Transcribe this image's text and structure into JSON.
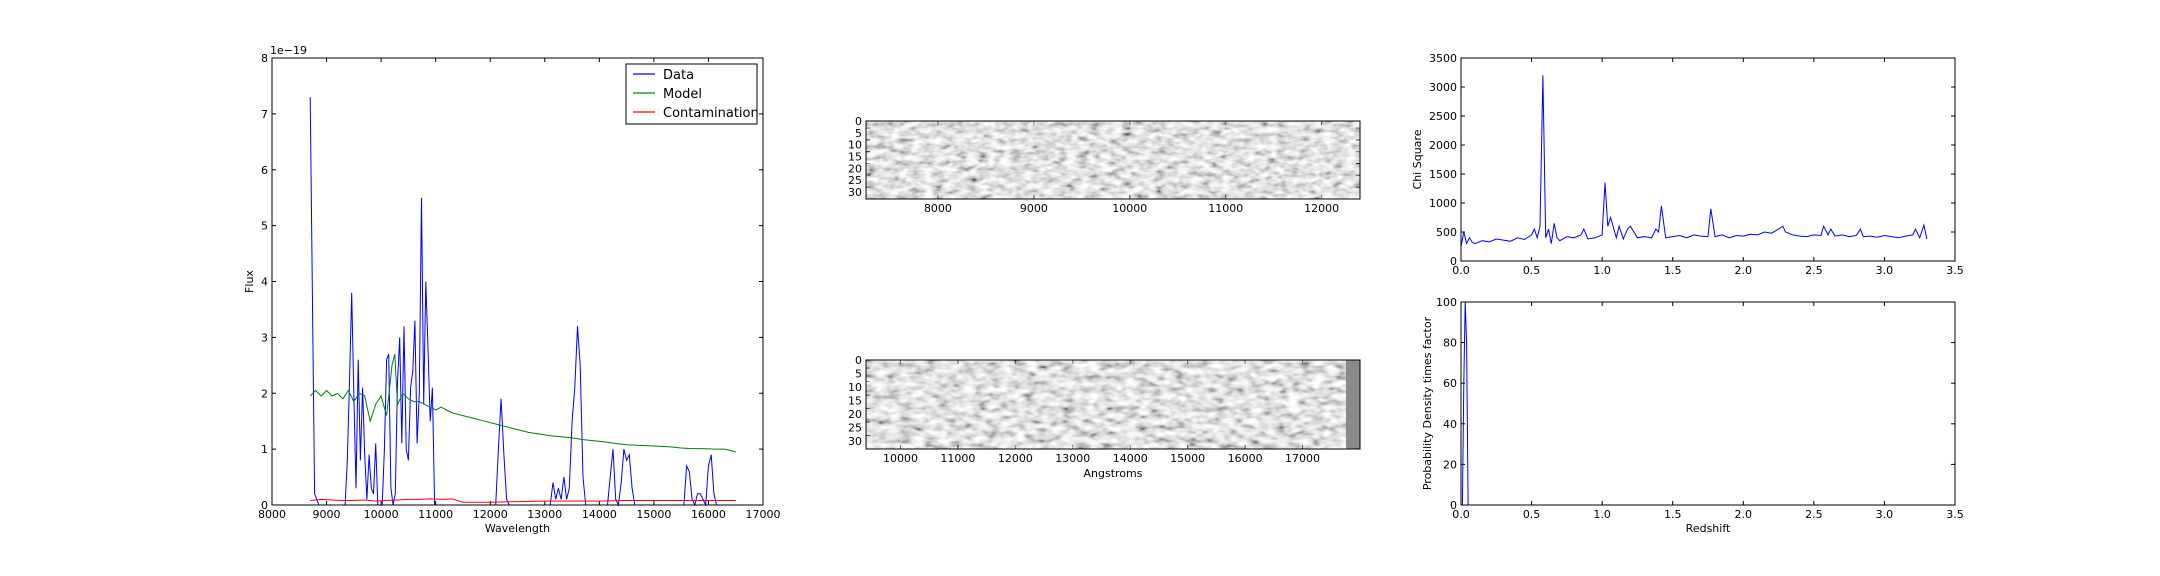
{
  "charts": {
    "spectrum": {
      "type": "line",
      "xlabel": "Wavelength",
      "ylabel": "Flux",
      "offset_text": "1e−19",
      "xlim": [
        8000,
        17000
      ],
      "ylim": [
        0,
        8
      ],
      "xticks": [
        8000,
        9000,
        10000,
        11000,
        12000,
        13000,
        14000,
        15000,
        16000,
        17000
      ],
      "yticks": [
        0,
        1,
        2,
        3,
        4,
        5,
        6,
        7,
        8
      ],
      "legend": {
        "placement": "upper-right",
        "entries": [
          "Data",
          "Model",
          "Contamination"
        ]
      },
      "series": [
        {
          "name": "Data",
          "color": "#0000ff",
          "x": [
            8700,
            8780,
            8860,
            8940,
            9020,
            9100,
            9180,
            9260,
            9340,
            9380,
            9420,
            9460,
            9500,
            9540,
            9580,
            9620,
            9660,
            9700,
            9740,
            9780,
            9820,
            9860,
            9900,
            9940,
            9980,
            10020,
            10060,
            10100,
            10140,
            10180,
            10220,
            10260,
            10300,
            10340,
            10380,
            10420,
            10460,
            10500,
            10540,
            10580,
            10620,
            10660,
            10700,
            10740,
            10780,
            10820,
            10860,
            10900,
            10940,
            10980,
            11020,
            11060,
            11100,
            11140,
            11180,
            11220,
            11260,
            11300,
            11340,
            11380,
            12100,
            12150,
            12200,
            12250,
            12300,
            12350,
            13100,
            13150,
            13200,
            13250,
            13300,
            13350,
            13400,
            13450,
            13500,
            13550,
            13600,
            13650,
            13700,
            13750,
            13800,
            13850,
            14150,
            14200,
            14250,
            14300,
            14350,
            14400,
            14450,
            14500,
            14550,
            14600,
            14650,
            14700,
            15550,
            15600,
            15650,
            15700,
            15750,
            15800,
            15850,
            15900,
            15950,
            16000,
            16050,
            16100,
            16150,
            16200,
            16250,
            16300
          ],
          "y": [
            7.3,
            0.2,
            0.0,
            0.0,
            0.0,
            0.0,
            0.0,
            0.0,
            0.0,
            0.8,
            2.2,
            3.8,
            2.0,
            0.3,
            2.6,
            0.8,
            2.1,
            0.9,
            0.1,
            0.9,
            0.3,
            0.2,
            1.1,
            0.0,
            0.0,
            0.0,
            1.0,
            2.6,
            2.7,
            0.3,
            0.0,
            0.2,
            2.2,
            3.0,
            1.1,
            3.2,
            1.0,
            0.8,
            2.1,
            2.4,
            3.3,
            1.1,
            2.0,
            5.5,
            1.8,
            4.0,
            2.8,
            1.5,
            2.1,
            0.0,
            0.0,
            0.0,
            0.0,
            0.0,
            0.0,
            0.0,
            0.0,
            0.0,
            0.0,
            0.0,
            0.0,
            1.0,
            1.9,
            0.9,
            0.1,
            0.0,
            0.0,
            0.4,
            0.1,
            0.3,
            0.1,
            0.5,
            0.1,
            0.3,
            1.5,
            2.1,
            3.2,
            2.5,
            0.5,
            0.0,
            0.0,
            0.0,
            0.0,
            0.5,
            1.0,
            0.1,
            0.0,
            0.4,
            1.0,
            0.8,
            0.9,
            0.3,
            0.0,
            0.0,
            0.0,
            0.7,
            0.6,
            0.1,
            0.0,
            0.2,
            0.2,
            0.1,
            0.0,
            0.7,
            0.9,
            0.2,
            0.0,
            0.0,
            0.0,
            0.0
          ]
        },
        {
          "name": "Model",
          "color": "#008000",
          "x": [
            8700,
            8800,
            8900,
            9000,
            9100,
            9200,
            9300,
            9400,
            9500,
            9600,
            9700,
            9800,
            9900,
            10000,
            10100,
            10200,
            10250,
            10300,
            10400,
            10500,
            10600,
            10700,
            10800,
            10900,
            11000,
            11100,
            11200,
            11300,
            11500,
            11700,
            11900,
            12100,
            12300,
            12500,
            12700,
            12900,
            13100,
            13300,
            13500,
            13700,
            13900,
            14100,
            14300,
            14500,
            14700,
            14900,
            15100,
            15300,
            15500,
            15700,
            15900,
            16100,
            16300,
            16500
          ],
          "y": [
            1.95,
            2.05,
            1.95,
            2.05,
            1.95,
            2.0,
            1.9,
            2.05,
            1.85,
            2.0,
            1.95,
            1.5,
            1.8,
            1.95,
            1.6,
            2.5,
            2.7,
            1.8,
            2.0,
            1.9,
            1.85,
            1.85,
            1.8,
            1.75,
            1.7,
            1.75,
            1.7,
            1.65,
            1.6,
            1.55,
            1.5,
            1.45,
            1.4,
            1.35,
            1.3,
            1.27,
            1.24,
            1.22,
            1.2,
            1.17,
            1.15,
            1.13,
            1.1,
            1.08,
            1.07,
            1.06,
            1.05,
            1.04,
            1.02,
            1.01,
            1.01,
            1.0,
            1.0,
            0.95
          ]
        },
        {
          "name": "Contamination",
          "color": "#ff0000",
          "x": [
            8700,
            8900,
            9100,
            9300,
            9500,
            9700,
            9900,
            10100,
            10300,
            10500,
            10700,
            10900,
            11100,
            11300,
            11500,
            11700,
            12000,
            12500,
            13000,
            13500,
            14000,
            14500,
            15000,
            15500,
            16000,
            16500
          ],
          "y": [
            0.08,
            0.1,
            0.09,
            0.08,
            0.08,
            0.09,
            0.07,
            0.08,
            0.09,
            0.1,
            0.1,
            0.11,
            0.1,
            0.11,
            0.05,
            0.05,
            0.05,
            0.06,
            0.07,
            0.07,
            0.07,
            0.08,
            0.08,
            0.08,
            0.08,
            0.08
          ]
        }
      ]
    },
    "stamp_top": {
      "type": "heatmap",
      "xlim": [
        7250,
        12400
      ],
      "ylim": [
        0,
        33
      ],
      "xticks": [
        8000,
        9000,
        10000,
        11000,
        12000
      ],
      "yticks": [
        0,
        5,
        10,
        15,
        20,
        25,
        30
      ],
      "xlabel": ""
    },
    "stamp_bottom": {
      "type": "heatmap",
      "xlim": [
        9400,
        18000
      ],
      "ylim": [
        0,
        33
      ],
      "xticks": [
        10000,
        11000,
        12000,
        13000,
        14000,
        15000,
        16000,
        17000
      ],
      "yticks": [
        0,
        5,
        10,
        15,
        20,
        25,
        30
      ],
      "xlabel": "Angstroms"
    },
    "chi_square": {
      "type": "line",
      "xlabel": "",
      "ylabel": "Chi Square",
      "xlim": [
        0,
        3.5
      ],
      "ylim": [
        0,
        3500
      ],
      "xticks": [
        0.0,
        0.5,
        1.0,
        1.5,
        2.0,
        2.5,
        3.0,
        3.5
      ],
      "yticks": [
        0,
        500,
        1000,
        1500,
        2000,
        2500,
        3000,
        3500
      ],
      "series": [
        {
          "color": "#0000ff",
          "x": [
            0.0,
            0.02,
            0.04,
            0.06,
            0.08,
            0.1,
            0.15,
            0.2,
            0.25,
            0.3,
            0.35,
            0.4,
            0.45,
            0.5,
            0.52,
            0.54,
            0.56,
            0.58,
            0.6,
            0.62,
            0.64,
            0.66,
            0.68,
            0.7,
            0.75,
            0.8,
            0.85,
            0.87,
            0.9,
            0.95,
            1.0,
            1.02,
            1.04,
            1.06,
            1.1,
            1.12,
            1.15,
            1.18,
            1.2,
            1.25,
            1.3,
            1.35,
            1.38,
            1.4,
            1.42,
            1.45,
            1.5,
            1.55,
            1.6,
            1.65,
            1.7,
            1.75,
            1.77,
            1.8,
            1.85,
            1.9,
            1.95,
            2.0,
            2.05,
            2.1,
            2.15,
            2.2,
            2.25,
            2.28,
            2.3,
            2.35,
            2.4,
            2.45,
            2.5,
            2.55,
            2.57,
            2.6,
            2.62,
            2.65,
            2.7,
            2.75,
            2.8,
            2.83,
            2.85,
            2.9,
            2.95,
            3.0,
            3.05,
            3.1,
            3.15,
            3.2,
            3.22,
            3.25,
            3.28,
            3.3
          ],
          "y": [
            250,
            500,
            300,
            400,
            320,
            300,
            350,
            330,
            380,
            360,
            340,
            400,
            370,
            450,
            550,
            400,
            600,
            3200,
            400,
            550,
            300,
            650,
            400,
            350,
            420,
            400,
            450,
            550,
            380,
            400,
            450,
            1350,
            600,
            750,
            400,
            600,
            380,
            550,
            600,
            400,
            420,
            400,
            550,
            500,
            950,
            400,
            420,
            440,
            400,
            450,
            430,
            420,
            900,
            420,
            450,
            400,
            440,
            430,
            460,
            450,
            500,
            480,
            550,
            600,
            500,
            450,
            430,
            420,
            450,
            440,
            600,
            450,
            550,
            430,
            450,
            420,
            440,
            550,
            420,
            430,
            410,
            440,
            420,
            400,
            430,
            450,
            550,
            400,
            620,
            380
          ]
        }
      ]
    },
    "probability": {
      "type": "line",
      "xlabel": "Redshift",
      "ylabel": "Probability Density times factor",
      "xlim": [
        0,
        3.5
      ],
      "ylim": [
        0,
        100
      ],
      "xticks": [
        0.0,
        0.5,
        1.0,
        1.5,
        2.0,
        2.5,
        3.0,
        3.5
      ],
      "yticks": [
        0,
        20,
        40,
        60,
        80,
        100
      ],
      "series": [
        {
          "color": "#0000ff",
          "x": [
            0.0,
            0.01,
            0.02,
            0.03,
            0.04,
            0.05,
            0.06,
            0.1,
            1.0,
            2.0,
            3.0,
            3.32
          ],
          "y": [
            0,
            0,
            60,
            100,
            80,
            0,
            0,
            0,
            0,
            0,
            0,
            0
          ]
        }
      ]
    }
  }
}
